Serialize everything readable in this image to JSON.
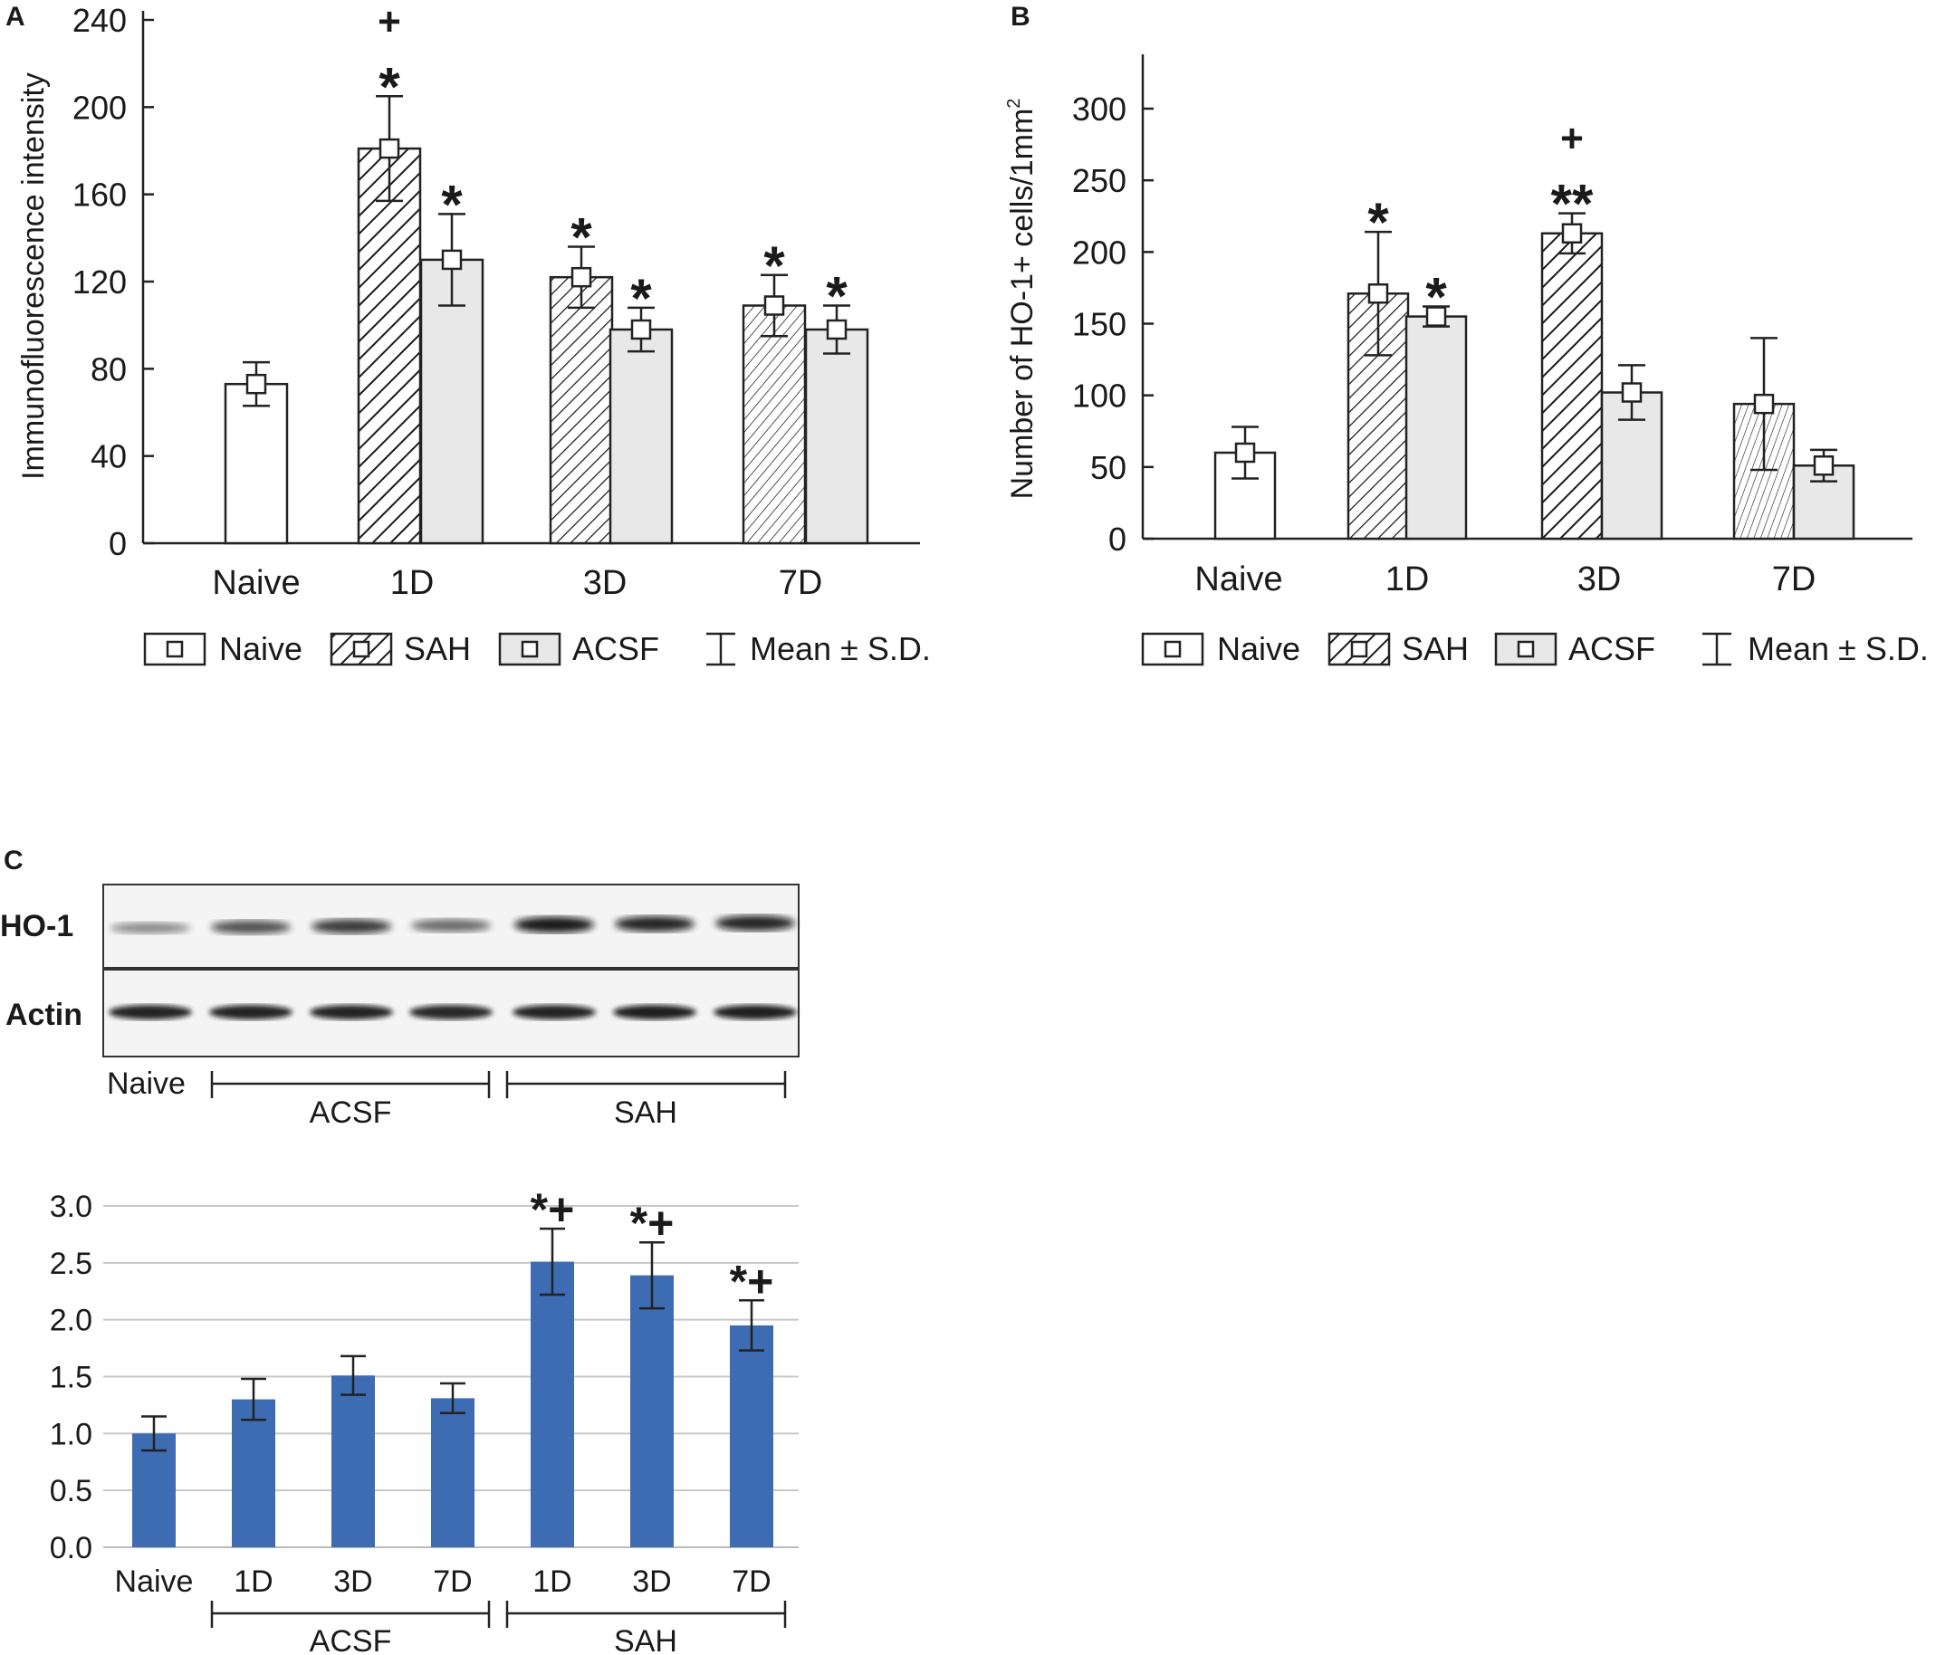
{
  "panel_labels": {
    "a": "A",
    "b": "B",
    "c": "C"
  },
  "legend": {
    "naive": "Naive",
    "sah": "SAH",
    "acsf": "ACSF",
    "mean_sd": "Mean ± S.D."
  },
  "colors": {
    "bar_blue": "#3d6cb3",
    "acsf_fill": "#e8e8e8",
    "axis": "#222222",
    "grid": "#c8c8c8"
  },
  "chart_data": [
    {
      "id": "A",
      "type": "bar",
      "ylabel": "Immunofluorescence intensity",
      "ylim": [
        0,
        240
      ],
      "yticks": [
        "0",
        "40",
        "80",
        "120",
        "160",
        "200",
        "240"
      ],
      "categories": [
        "Naive",
        "1D",
        "3D",
        "7D"
      ],
      "series": [
        {
          "name": "Naive",
          "values": [
            73,
            null,
            null,
            null
          ],
          "sd": [
            10,
            null,
            null,
            null
          ]
        },
        {
          "name": "SAH",
          "values": [
            null,
            181,
            122,
            109
          ],
          "sd": [
            null,
            24,
            14,
            14
          ]
        },
        {
          "name": "ACSF",
          "values": [
            null,
            130,
            98,
            98
          ],
          "sd": [
            null,
            21,
            10,
            11
          ]
        }
      ],
      "annotations": [
        {
          "category": "1D",
          "series": "SAH",
          "text": "+",
          "level": 2
        },
        {
          "category": "1D",
          "series": "SAH",
          "text": "*",
          "level": 1
        },
        {
          "category": "1D",
          "series": "ACSF",
          "text": "*",
          "level": 1
        },
        {
          "category": "3D",
          "series": "SAH",
          "text": "*",
          "level": 1
        },
        {
          "category": "3D",
          "series": "ACSF",
          "text": "*",
          "level": 1
        },
        {
          "category": "7D",
          "series": "SAH",
          "text": "*",
          "level": 1
        },
        {
          "category": "7D",
          "series": "ACSF",
          "text": "*",
          "level": 1
        }
      ]
    },
    {
      "id": "B",
      "type": "bar",
      "ylabel": "Number of HO-1+ cells/1mm",
      "ylabel_sup": "2",
      "ylim": [
        0,
        300
      ],
      "yticks": [
        "0",
        "50",
        "100",
        "150",
        "200",
        "250",
        "300"
      ],
      "categories": [
        "Naive",
        "1D",
        "3D",
        "7D"
      ],
      "series": [
        {
          "name": "Naive",
          "values": [
            60,
            null,
            null,
            null
          ],
          "sd": [
            18,
            null,
            null,
            null
          ]
        },
        {
          "name": "SAH",
          "values": [
            null,
            171,
            213,
            94
          ],
          "sd": [
            null,
            43,
            14,
            46
          ]
        },
        {
          "name": "ACSF",
          "values": [
            null,
            155,
            102,
            51
          ],
          "sd": [
            null,
            7,
            19,
            11
          ]
        }
      ],
      "annotations": [
        {
          "category": "1D",
          "series": "SAH",
          "text": "*",
          "level": 1
        },
        {
          "category": "1D",
          "series": "ACSF",
          "text": "*",
          "level": 1
        },
        {
          "category": "3D",
          "series": "SAH",
          "text": "+",
          "level": 2
        },
        {
          "category": "3D",
          "series": "SAH",
          "text": "**",
          "level": 1
        }
      ]
    },
    {
      "id": "C",
      "type": "bar",
      "ylim": [
        0,
        3.0
      ],
      "yticks": [
        "0.0",
        "0.5",
        "1.0",
        "1.5",
        "2.0",
        "2.5",
        "3.0"
      ],
      "grid": true,
      "categories": [
        "Naive",
        "1D",
        "3D",
        "7D",
        "1D",
        "3D",
        "7D"
      ],
      "groups": [
        {
          "label": "ACSF",
          "from": 1,
          "to": 3
        },
        {
          "label": "SAH",
          "from": 4,
          "to": 6
        }
      ],
      "values": [
        1.0,
        1.3,
        1.51,
        1.31,
        2.51,
        2.39,
        1.95
      ],
      "errors": [
        0.15,
        0.18,
        0.17,
        0.13,
        0.29,
        0.29,
        0.22
      ],
      "annotations": [
        "",
        "",
        "",
        "",
        "*+",
        "*+",
        "*+"
      ]
    }
  ],
  "blot": {
    "rows": [
      "HO-1",
      "Actin"
    ],
    "lanes": 7,
    "ho1_intensity": [
      0.45,
      0.7,
      0.8,
      0.6,
      0.95,
      0.9,
      0.9
    ],
    "actin_intensity": [
      0.9,
      0.9,
      0.9,
      0.88,
      0.9,
      0.92,
      0.92
    ],
    "naive_label": "Naive",
    "acsf_label": "ACSF",
    "sah_label": "SAH"
  }
}
